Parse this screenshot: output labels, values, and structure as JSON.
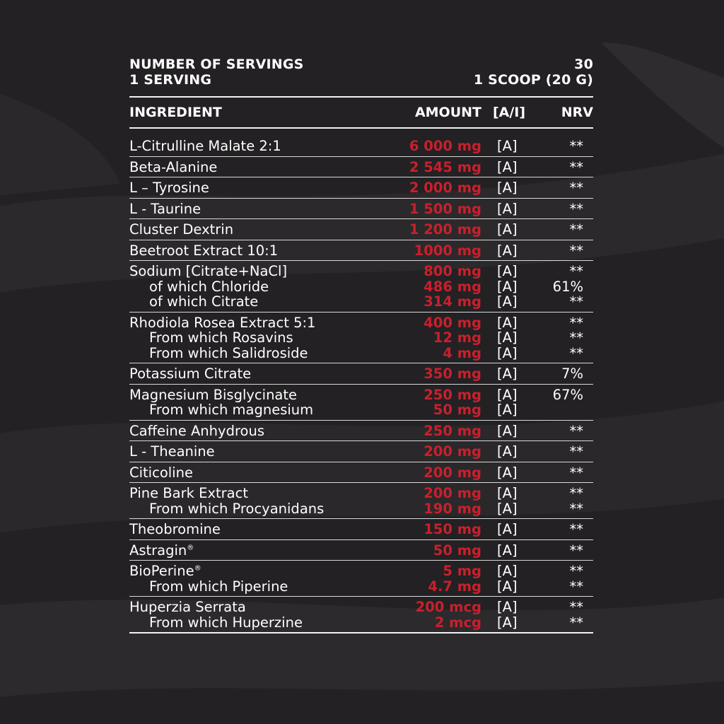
{
  "servings": {
    "label": "NUMBER OF SERVINGS",
    "value": "30",
    "serving_label": "1 SERVING",
    "serving_value": "1 SCOOP (20 G)"
  },
  "columns": {
    "ingredient": "INGREDIENT",
    "amount": "AMOUNT",
    "ai": "[A/I]",
    "nrv": "NRV"
  },
  "rows": [
    {
      "lines": [
        {
          "name": "L-Citrulline Malate 2:1",
          "amount": "6 000 mg",
          "ai": "[A]",
          "nrv": "**"
        }
      ]
    },
    {
      "lines": [
        {
          "name": "Beta-Alanine",
          "amount": "2 545 mg",
          "ai": "[A]",
          "nrv": "**"
        }
      ]
    },
    {
      "lines": [
        {
          "name": "L – Tyrosine",
          "amount": "2 000 mg",
          "ai": "[A]",
          "nrv": "**"
        }
      ]
    },
    {
      "lines": [
        {
          "name": "L - Taurine",
          "amount": "1 500 mg",
          "ai": "[A]",
          "nrv": "**"
        }
      ]
    },
    {
      "lines": [
        {
          "name": "Cluster Dextrin",
          "amount": "1 200 mg",
          "ai": "[A]",
          "nrv": "**"
        }
      ]
    },
    {
      "lines": [
        {
          "name": "Beetroot Extract 10:1",
          "amount": "1000 mg",
          "ai": "[A]",
          "nrv": "**"
        }
      ]
    },
    {
      "lines": [
        {
          "name": "Sodium [Citrate+NaCl]",
          "amount": "800 mg",
          "ai": "[A]",
          "nrv": "**"
        },
        {
          "name": "of which Chloride",
          "amount": "486 mg",
          "ai": "[A]",
          "nrv": "61%",
          "sub": true
        },
        {
          "name": "of which Citrate",
          "amount": "314 mg",
          "ai": "[A]",
          "nrv": "**",
          "sub": true
        }
      ]
    },
    {
      "lines": [
        {
          "name": "Rhodiola Rosea Extract 5:1",
          "amount": "400 mg",
          "ai": "[A]",
          "nrv": "**"
        },
        {
          "name": "From which Rosavins",
          "amount": "12 mg",
          "ai": "[A]",
          "nrv": "**",
          "sub": true
        },
        {
          "name": "From which Salidroside",
          "amount": "4 mg",
          "ai": "[A]",
          "nrv": "**",
          "sub": true
        }
      ]
    },
    {
      "lines": [
        {
          "name": "Potassium Citrate",
          "amount": "350 mg",
          "ai": "[A]",
          "nrv": "7%"
        }
      ]
    },
    {
      "lines": [
        {
          "name": "Magnesium Bisglycinate",
          "amount": "250 mg",
          "ai": "[A]",
          "nrv": "67%"
        },
        {
          "name": "From which magnesium",
          "amount": "50 mg",
          "ai": "[A]",
          "nrv": "",
          "sub": true
        }
      ]
    },
    {
      "lines": [
        {
          "name": "Caffeine Anhydrous",
          "amount": "250 mg",
          "ai": "[A]",
          "nrv": "**"
        }
      ]
    },
    {
      "lines": [
        {
          "name": "L - Theanine",
          "amount": "200 mg",
          "ai": "[A]",
          "nrv": "**"
        }
      ]
    },
    {
      "lines": [
        {
          "name": "Citicoline",
          "amount": "200 mg",
          "ai": "[A]",
          "nrv": "**"
        }
      ]
    },
    {
      "lines": [
        {
          "name": "Pine Bark Extract",
          "amount": "200 mg",
          "ai": "[A]",
          "nrv": "**"
        },
        {
          "name": "From which Procyanidans",
          "amount": "190 mg",
          "ai": "[A]",
          "nrv": "**",
          "sub": true
        }
      ]
    },
    {
      "lines": [
        {
          "name": "Theobromine",
          "amount": "150 mg",
          "ai": "[A]",
          "nrv": "**"
        }
      ]
    },
    {
      "lines": [
        {
          "name": "Astragin",
          "reg": "®",
          "amount": "50 mg",
          "ai": "[A]",
          "nrv": "**"
        }
      ]
    },
    {
      "lines": [
        {
          "name": "BioPerine",
          "reg": "®",
          "amount": "5 mg",
          "ai": "[A]",
          "nrv": "**"
        },
        {
          "name": "From which Piperine",
          "amount": "4.7 mg",
          "ai": "[A]",
          "nrv": "**",
          "sub": true
        }
      ]
    },
    {
      "lines": [
        {
          "name": "Huperzia Serrata",
          "amount": "200 mcg",
          "ai": "[A]",
          "nrv": "**"
        },
        {
          "name": "From which Huperzine",
          "amount": "2 mcg",
          "ai": "[A]",
          "nrv": "**",
          "sub": true
        }
      ]
    }
  ]
}
